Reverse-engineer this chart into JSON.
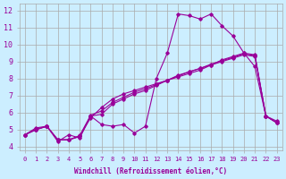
{
  "xlabel": "Windchill (Refroidissement éolien,°C)",
  "bg_color": "#cceeff",
  "line_color": "#990099",
  "grid_color": "#aaaaaa",
  "xlim": [
    -0.5,
    23.5
  ],
  "ylim": [
    3.8,
    12.4
  ],
  "xticks": [
    0,
    1,
    2,
    3,
    4,
    5,
    6,
    7,
    8,
    9,
    10,
    11,
    12,
    13,
    14,
    15,
    16,
    17,
    18,
    19,
    20,
    21,
    22,
    23
  ],
  "yticks": [
    4,
    5,
    6,
    7,
    8,
    9,
    10,
    11,
    12
  ],
  "series": [
    [
      4.7,
      5.1,
      5.2,
      4.3,
      4.7,
      4.5,
      5.8,
      5.3,
      5.2,
      5.3,
      4.8,
      5.2,
      8.0,
      9.5,
      11.8,
      11.7,
      11.5,
      11.8,
      11.1,
      10.5,
      9.5,
      8.7,
      5.8,
      5.5
    ],
    [
      4.7,
      5.0,
      5.2,
      4.4,
      4.4,
      4.6,
      5.8,
      5.9,
      6.5,
      6.8,
      7.1,
      7.3,
      7.6,
      7.9,
      8.2,
      8.4,
      8.6,
      8.8,
      9.1,
      9.3,
      9.5,
      9.4,
      5.8,
      5.4
    ],
    [
      4.7,
      5.0,
      5.2,
      4.4,
      4.4,
      4.65,
      5.85,
      6.1,
      6.6,
      6.9,
      7.2,
      7.4,
      7.65,
      7.9,
      8.15,
      8.4,
      8.6,
      8.85,
      9.05,
      9.25,
      9.45,
      9.35,
      5.8,
      5.4
    ],
    [
      4.7,
      5.0,
      5.2,
      4.4,
      4.4,
      4.6,
      5.7,
      6.3,
      6.8,
      7.1,
      7.3,
      7.5,
      7.7,
      7.9,
      8.1,
      8.3,
      8.5,
      8.8,
      9.0,
      9.2,
      9.4,
      9.3,
      5.8,
      5.4
    ]
  ]
}
